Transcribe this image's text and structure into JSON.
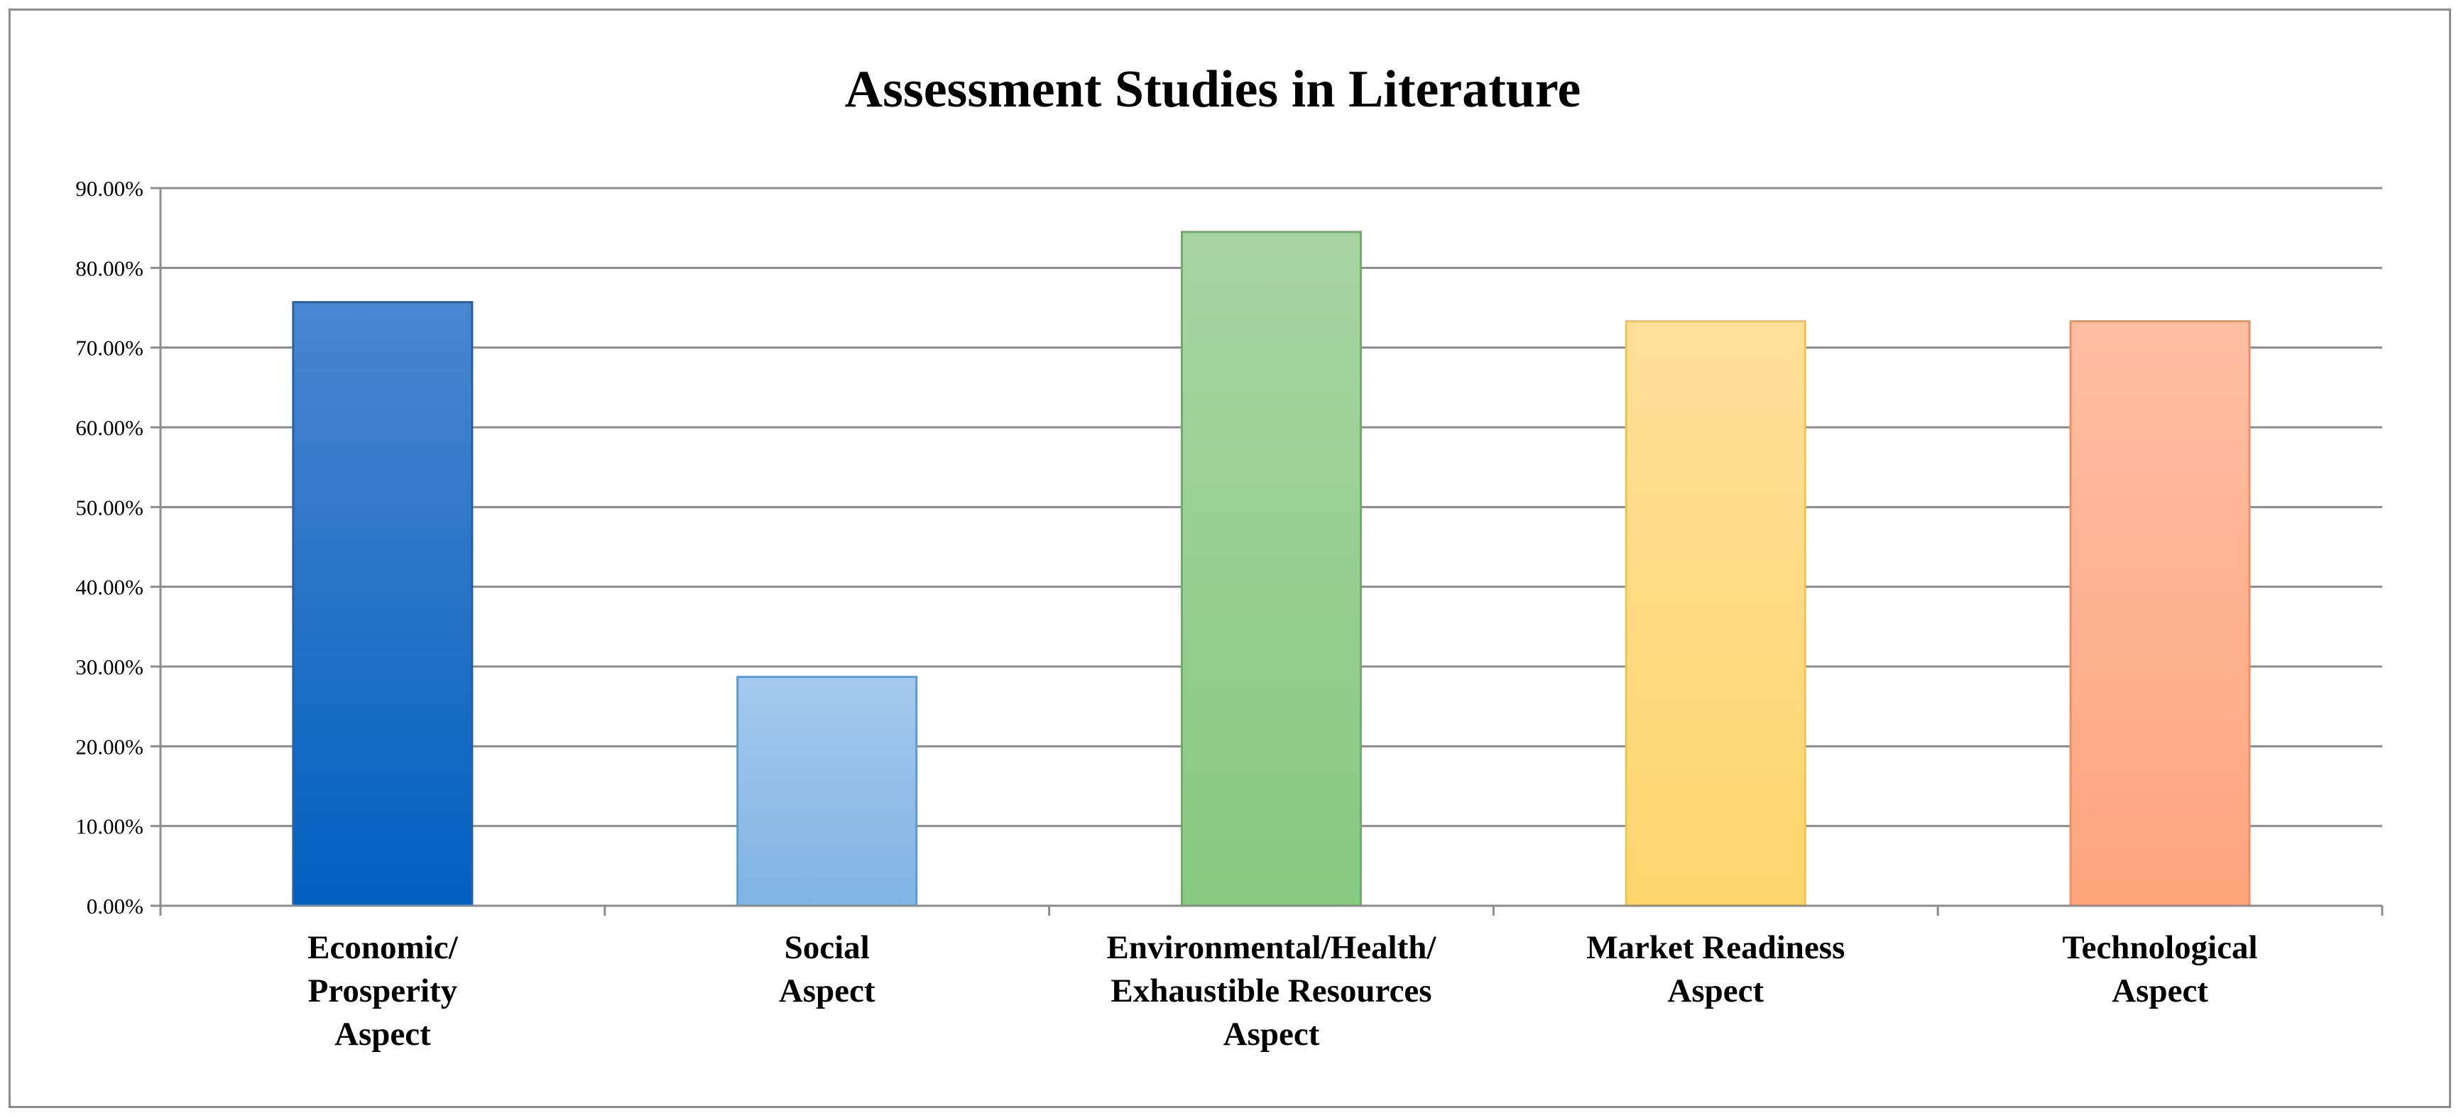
{
  "chart_data": {
    "type": "bar",
    "title": "Assessment Studies in Literature",
    "xlabel": "",
    "ylabel": "",
    "ylim": [
      0,
      0.9
    ],
    "yticks": [
      0,
      0.1,
      0.2,
      0.3,
      0.4,
      0.5,
      0.6,
      0.7,
      0.8,
      0.9
    ],
    "ytick_labels": [
      "0.00%",
      "10.00%",
      "20.00%",
      "30.00%",
      "40.00%",
      "50.00%",
      "60.00%",
      "70.00%",
      "80.00%",
      "90.00%"
    ],
    "grid": true,
    "legend": "none",
    "categories": [
      [
        "Economic/",
        "Prosperity",
        "Aspect"
      ],
      [
        "Social",
        "Aspect"
      ],
      [
        "Environmental/Health/",
        "Exhaustible Resources",
        "Aspect"
      ],
      [
        "Market Readiness",
        "Aspect"
      ],
      [
        "Technological",
        "Aspect"
      ]
    ],
    "values": [
      0.757,
      0.287,
      0.845,
      0.733,
      0.733
    ],
    "colors": [
      {
        "top": "#4a86d0",
        "bottom": "#0060c0",
        "edge": "#2a5fa0"
      },
      {
        "top": "#a5c9ee",
        "bottom": "#7fb4e3",
        "edge": "#5e9ad4"
      },
      {
        "top": "#a8d4a3",
        "bottom": "#86c97f",
        "edge": "#6fae68"
      },
      {
        "top": "#ffe09a",
        "bottom": "#ffd56c",
        "edge": "#f2c44a"
      },
      {
        "top": "#ffbea2",
        "bottom": "#ffa57e",
        "edge": "#f08e66"
      }
    ]
  }
}
